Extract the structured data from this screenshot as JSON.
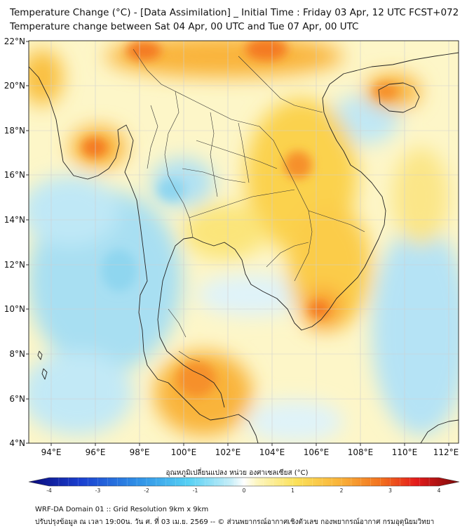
{
  "header": {
    "title_line1": "Temperature Change (°C) - [Data Assimilation] _ Initial Time : Friday 03 Apr, 12 UTC FCST+072",
    "title_line2": "Temperature change between Sat 04 Apr, 00 UTC and Tue 07 Apr, 00 UTC"
  },
  "map": {
    "lat_ticks": [
      "22°N",
      "20°N",
      "18°N",
      "16°N",
      "14°N",
      "12°N",
      "10°N",
      "8°N",
      "6°N",
      "4°N"
    ],
    "lon_ticks": [
      "94°E",
      "96°E",
      "98°E",
      "100°E",
      "102°E",
      "104°E",
      "106°E",
      "108°E",
      "110°E",
      "112°E"
    ],
    "lat_range": [
      4,
      22
    ],
    "lon_range": [
      93,
      112.5
    ],
    "colors": {
      "background_light_yellow": "#fdf8c0",
      "warm_yellow": "#fbe15a",
      "warm_orange": "#f9b43a",
      "hot_orange": "#f47a20",
      "cool_light": "#e2f4fa",
      "cool_blue": "#a3def3",
      "border_line": "#222222",
      "grid_line": "#cccccc"
    }
  },
  "colorbar": {
    "label": "อุณหภูมิเปลี่ยนแปลง หน่วย องศาเซลเซียส (°C)",
    "ticks": [
      "-4",
      "-3",
      "-2",
      "-1",
      "0",
      "1",
      "2",
      "3",
      "4"
    ],
    "range": [
      -4,
      4
    ]
  },
  "footer": {
    "line1": "WRF-DA Domain 01 :: Grid Resolution 9km x 9km",
    "line2": "ปรับปรุงข้อมูล ณ เวลา 19:00น. วัน ศ. ที่ 03 เม.ย. 2569 -- © ส่วนพยากรณ์อากาศเชิงตัวเลข กองพยากรณ์อากาศ กรมอุตุนิยมวิทยา"
  }
}
